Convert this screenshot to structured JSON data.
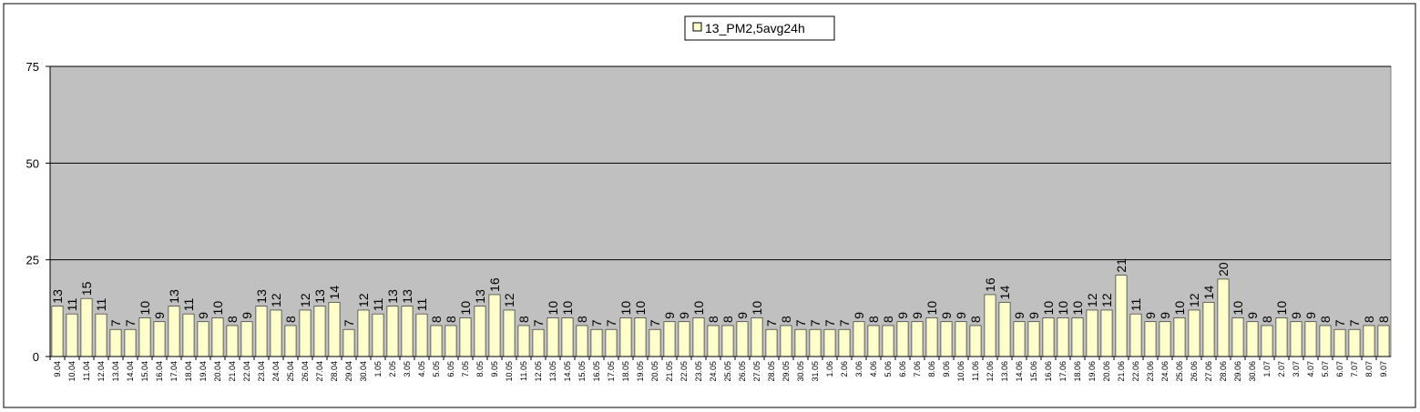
{
  "chart_data": {
    "type": "bar",
    "categories": [
      "9.04",
      "10.04",
      "11.04",
      "12.04",
      "13.04",
      "14.04",
      "15.04",
      "16.04",
      "17.04",
      "18.04",
      "19.04",
      "20.04",
      "21.04",
      "22.04",
      "23.04",
      "24.04",
      "25.04",
      "26.04",
      "27.04",
      "28.04",
      "29.04",
      "30.04",
      "1.05",
      "2.05",
      "3.05",
      "4.05",
      "5.05",
      "6.05",
      "7.05",
      "8.05",
      "9.05",
      "10.05",
      "11.05",
      "12.05",
      "13.05",
      "14.05",
      "15.05",
      "16.05",
      "17.05",
      "18.05",
      "19.05",
      "20.05",
      "21.05",
      "22.05",
      "23.05",
      "24.05",
      "25.05",
      "26.05",
      "27.05",
      "28.05",
      "29.05",
      "30.05",
      "31.05",
      "1.06",
      "2.06",
      "3.06",
      "4.06",
      "5.06",
      "6.06",
      "7.06",
      "8.06",
      "9.06",
      "10.06",
      "11.06",
      "12.06",
      "13.06",
      "14.06",
      "15.06",
      "16.06",
      "17.06",
      "18.06",
      "19.06",
      "20.06",
      "21.06",
      "22.06",
      "23.06",
      "24.06",
      "25.06",
      "26.06",
      "27.06",
      "28.06",
      "29.06",
      "30.06",
      "1.07",
      "2.07",
      "3.07",
      "4.07",
      "5.07",
      "6.07",
      "7.07",
      "8.07",
      "9.07"
    ],
    "series": [
      {
        "name": "13_PM2,5avg24h",
        "color": "#ffffcc",
        "values": [
          13,
          11,
          15,
          11,
          7,
          7,
          10,
          9,
          13,
          11,
          9,
          10,
          8,
          9,
          13,
          12,
          8,
          12,
          13,
          14,
          7,
          12,
          11,
          13,
          13,
          11,
          8,
          8,
          10,
          13,
          16,
          12,
          8,
          7,
          10,
          10,
          8,
          7,
          7,
          10,
          10,
          7,
          9,
          9,
          10,
          8,
          8,
          9,
          10,
          7,
          8,
          7,
          7,
          7,
          7,
          9,
          8,
          8,
          9,
          9,
          10,
          9,
          9,
          8,
          16,
          14,
          9,
          9,
          10,
          10,
          10,
          12,
          12,
          21,
          11,
          9,
          9,
          10,
          12,
          14,
          20,
          10,
          9,
          8,
          10,
          9,
          9,
          8,
          7,
          7,
          8,
          8
        ]
      }
    ],
    "ylim": [
      0,
      75
    ],
    "yticks": [
      0,
      25,
      50,
      75
    ],
    "grid": true,
    "plot_background": "#c0c0c0",
    "legend": "top"
  }
}
